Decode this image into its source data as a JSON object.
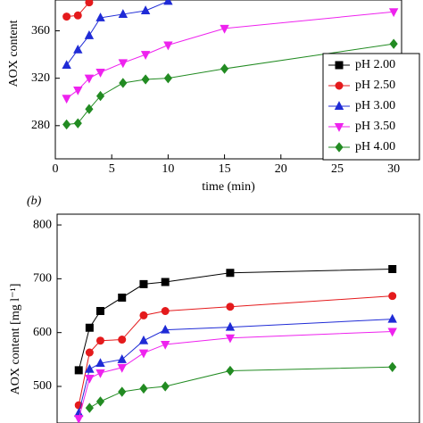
{
  "chart_data": [
    {
      "type": "line",
      "ylabel": "AOX content",
      "xlabel": "time (min)",
      "x": [
        1,
        2,
        3,
        4,
        6,
        8,
        10,
        15,
        30
      ],
      "xlim": [
        0,
        30.7
      ],
      "xticks": [
        0,
        5,
        10,
        15,
        20,
        25,
        30
      ],
      "ylim": [
        252,
        386
      ],
      "yticks": [
        280,
        320,
        360
      ],
      "legend": "right",
      "series": [
        {
          "name": "pH 2.00",
          "color": "#000000",
          "marker": "square",
          "values": [
            null,
            null,
            null,
            null,
            null,
            null,
            null,
            null,
            null
          ]
        },
        {
          "name": "pH 2.50",
          "color": "#e41a1c",
          "marker": "circle",
          "values": [
            372,
            373,
            384,
            null,
            null,
            null,
            null,
            null,
            null
          ]
        },
        {
          "name": "pH 3.00",
          "color": "#1f2bd6",
          "marker": "triangle",
          "values": [
            331,
            344,
            356,
            371,
            374,
            377,
            385,
            null,
            null
          ]
        },
        {
          "name": "pH 3.50",
          "color": "#ee22ee",
          "marker": "triangle-down",
          "values": [
            303,
            310,
            320,
            325,
            333,
            340,
            348,
            362,
            376
          ]
        },
        {
          "name": "pH 4.00",
          "color": "#228b22",
          "marker": "diamond",
          "values": [
            281,
            282,
            294,
            305,
            316,
            319,
            320,
            328,
            349
          ]
        }
      ]
    },
    {
      "type": "line",
      "panel": "(b)",
      "ylabel": "AOX content [mg l⁻¹]",
      "x": [
        1,
        2,
        3,
        5,
        7,
        9,
        15,
        30
      ],
      "xlim": [
        -1,
        32.5
      ],
      "ylim": [
        432,
        820
      ],
      "yticks": [
        500,
        600,
        700,
        800
      ],
      "series": [
        {
          "name": "pH 2.00",
          "color": "#000000",
          "marker": "square",
          "values": [
            530,
            609,
            640,
            665,
            690,
            694,
            711,
            718
          ]
        },
        {
          "name": "pH 2.50",
          "color": "#e41a1c",
          "marker": "circle",
          "values": [
            465,
            563,
            585,
            587,
            632,
            640,
            648,
            668
          ]
        },
        {
          "name": "pH 3.00",
          "color": "#1f2bd6",
          "marker": "triangle",
          "values": [
            450,
            532,
            543,
            550,
            585,
            605,
            610,
            625
          ]
        },
        {
          "name": "pH 3.50",
          "color": "#ee22ee",
          "marker": "triangle-down",
          "values": [
            440,
            515,
            525,
            535,
            562,
            578,
            590,
            602
          ]
        },
        {
          "name": "pH 4.00",
          "color": "#228b22",
          "marker": "diamond",
          "values": [
            null,
            460,
            472,
            490,
            496,
            500,
            529,
            536
          ]
        }
      ]
    }
  ]
}
